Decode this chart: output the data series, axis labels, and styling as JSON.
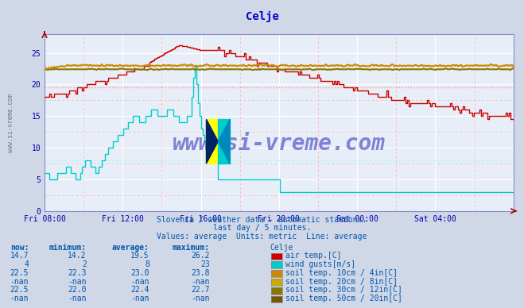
{
  "title": "Celje",
  "title_color": "#0000cc",
  "bg_color": "#d0d8e8",
  "plot_bg_color": "#e8eef8",
  "grid_color_major": "#ffffff",
  "grid_color_minor": "#ffaaaa",
  "xlabel_color": "#0000aa",
  "text_color": "#0055aa",
  "x_ticks": [
    "Fri 08:00",
    "Fri 12:00",
    "Fri 16:00",
    "Fri 20:00",
    "Sat 00:00",
    "Sat 04:00"
  ],
  "x_tick_positions": [
    0.0,
    0.1667,
    0.3333,
    0.5,
    0.6667,
    0.8333
  ],
  "y_ticks": [
    0,
    5,
    10,
    15,
    20,
    25
  ],
  "ymin": 0,
  "ymax": 28,
  "subtitle1": "Slovenia / weather data - automatic stations.",
  "subtitle2": "last day / 5 minutes.",
  "subtitle3": "Values: average  Units: metric  Line: average",
  "table_header": [
    "now:",
    "minimum:",
    "average:",
    "maximum:",
    "Celje"
  ],
  "table_rows": [
    [
      "14.7",
      "14.2",
      "19.5",
      "26.2",
      "#cc0000",
      "air temp.[C]"
    ],
    [
      "4",
      "2",
      "8",
      "23",
      "#00cccc",
      "wind gusts[m/s]"
    ],
    [
      "22.5",
      "22.3",
      "23.0",
      "23.8",
      "#cc8800",
      "soil temp. 10cm / 4in[C]"
    ],
    [
      "-nan",
      "-nan",
      "-nan",
      "-nan",
      "#ccaa00",
      "soil temp. 20cm / 8in[C]"
    ],
    [
      "22.5",
      "22.0",
      "22.4",
      "22.7",
      "#887700",
      "soil temp. 30cm / 12in[C]"
    ],
    [
      "-nan",
      "-nan",
      "-nan",
      "-nan",
      "#775500",
      "soil temp. 50cm / 20in[C]"
    ]
  ],
  "air_avg": 19.5,
  "wind_avg": 8.0,
  "soil10_avg": 23.0,
  "watermark": "www.si-vreme.com",
  "watermark_color": "#0000aa",
  "series_colors": {
    "air_temp": "#cc0000",
    "wind_gusts": "#00cccc",
    "soil10": "#cc8800",
    "soil30": "#887700"
  }
}
